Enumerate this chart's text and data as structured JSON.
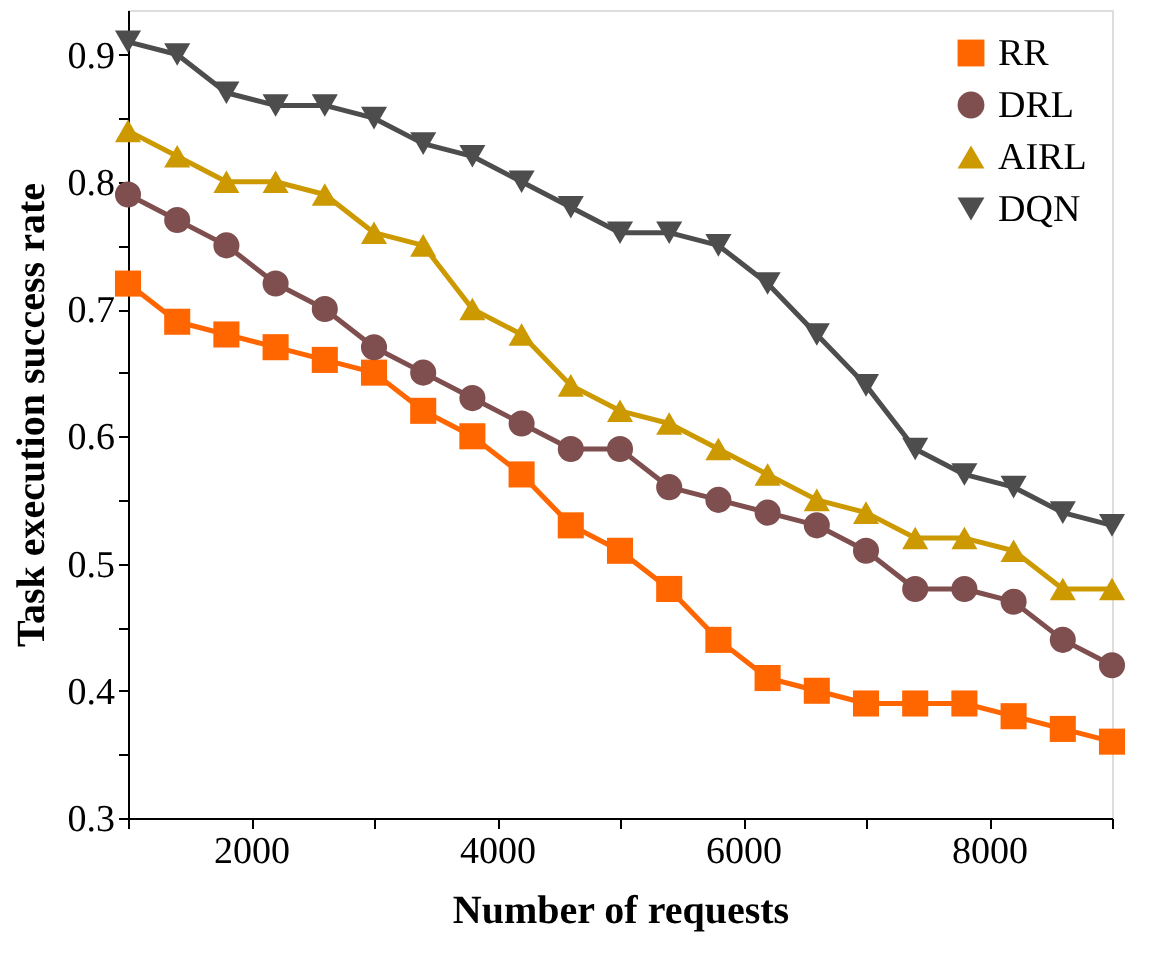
{
  "chart_data": {
    "type": "line",
    "xlabel": "Number of requests",
    "ylabel": "Task execution success rate",
    "x": [
      1000,
      1400,
      1800,
      2200,
      2600,
      3000,
      3400,
      3800,
      4200,
      4600,
      5000,
      5400,
      5800,
      6200,
      6600,
      7000,
      7400,
      7800,
      8200,
      8600,
      9000
    ],
    "xlim": [
      1000,
      9000
    ],
    "xticks": [
      {
        "value": 1000,
        "label": null
      },
      2000,
      {
        "value": 3000,
        "label": null
      },
      4000,
      {
        "value": 5000,
        "label": null
      },
      6000,
      {
        "value": 7000,
        "label": null
      },
      8000,
      {
        "value": 9000,
        "label": null
      }
    ],
    "ylim": [
      0.3,
      0.935
    ],
    "yticks": [
      0.3,
      {
        "value": 0.35,
        "label": null
      },
      0.4,
      {
        "value": 0.45,
        "label": null
      },
      0.5,
      {
        "value": 0.55,
        "label": null
      },
      0.6,
      {
        "value": 0.65,
        "label": null
      },
      0.7,
      {
        "value": 0.75,
        "label": null
      },
      0.8,
      {
        "value": 0.85,
        "label": null
      },
      0.9
    ],
    "grid": false,
    "legend": "top right",
    "line_style": "solid",
    "series": [
      {
        "name": "RR",
        "color": "#ff6600",
        "marker": "square",
        "values": [
          0.72,
          0.69,
          0.68,
          0.67,
          0.66,
          0.65,
          0.62,
          0.6,
          0.57,
          0.53,
          0.51,
          0.48,
          0.44,
          0.41,
          0.4,
          0.39,
          0.39,
          0.39,
          0.38,
          0.37,
          0.36
        ]
      },
      {
        "name": "DRL",
        "color": "#7f4f4f",
        "marker": "circle",
        "values": [
          0.79,
          0.77,
          0.75,
          0.72,
          0.7,
          0.67,
          0.65,
          0.63,
          0.61,
          0.59,
          0.59,
          0.56,
          0.55,
          0.54,
          0.53,
          0.51,
          0.48,
          0.48,
          0.47,
          0.44,
          0.42
        ]
      },
      {
        "name": "AIRL",
        "color": "#cc9900",
        "marker": "triangle",
        "values": [
          0.84,
          0.82,
          0.8,
          0.8,
          0.79,
          0.76,
          0.75,
          0.7,
          0.68,
          0.64,
          0.62,
          0.61,
          0.59,
          0.57,
          0.55,
          0.54,
          0.52,
          0.52,
          0.51,
          0.48,
          0.48
        ]
      },
      {
        "name": "DQN",
        "color": "#4d4d4d",
        "marker": "triangle-down",
        "values": [
          0.91,
          0.9,
          0.87,
          0.86,
          0.86,
          0.85,
          0.83,
          0.82,
          0.8,
          0.78,
          0.76,
          0.76,
          0.75,
          0.72,
          0.68,
          0.64,
          0.59,
          0.57,
          0.56,
          0.54,
          0.53
        ]
      }
    ]
  }
}
